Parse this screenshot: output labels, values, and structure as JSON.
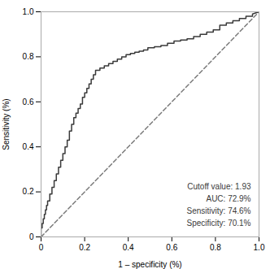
{
  "chart_data": {
    "type": "line",
    "xlabel": "1 – specificity (%)",
    "ylabel": "Sensitivity (%)",
    "xlim": [
      0,
      1.0
    ],
    "ylim": [
      0,
      1.0
    ],
    "xticks": [
      0,
      0.2,
      0.4,
      0.6,
      0.8,
      {
        "value": 1.0,
        "label": "1.0"
      }
    ],
    "yticks": [
      0,
      0.2,
      0.4,
      0.6,
      0.8,
      {
        "value": 1.0,
        "label": "1.0"
      }
    ],
    "grid": false,
    "series": [
      {
        "color": "#7a7a7a",
        "line_style": "dashed",
        "x": [
          0,
          1
        ],
        "values": [
          0,
          1
        ]
      },
      {
        "color": "#3a3a3a",
        "line_style": "solid",
        "x": [
          0.0,
          0.0,
          0.005,
          0.005,
          0.01,
          0.01,
          0.015,
          0.015,
          0.02,
          0.02,
          0.025,
          0.025,
          0.03,
          0.03,
          0.04,
          0.04,
          0.05,
          0.05,
          0.06,
          0.06,
          0.07,
          0.07,
          0.08,
          0.08,
          0.09,
          0.09,
          0.1,
          0.1,
          0.11,
          0.11,
          0.12,
          0.12,
          0.13,
          0.13,
          0.14,
          0.14,
          0.15,
          0.15,
          0.16,
          0.16,
          0.17,
          0.17,
          0.18,
          0.18,
          0.19,
          0.19,
          0.2,
          0.2,
          0.21,
          0.21,
          0.22,
          0.22,
          0.23,
          0.23,
          0.24,
          0.24,
          0.25,
          0.25,
          0.27,
          0.27,
          0.29,
          0.29,
          0.31,
          0.31,
          0.33,
          0.33,
          0.35,
          0.35,
          0.37,
          0.37,
          0.39,
          0.39,
          0.41,
          0.41,
          0.43,
          0.43,
          0.45,
          0.45,
          0.47,
          0.47,
          0.49,
          0.49,
          0.52,
          0.52,
          0.55,
          0.55,
          0.58,
          0.58,
          0.61,
          0.61,
          0.64,
          0.64,
          0.67,
          0.67,
          0.7,
          0.7,
          0.73,
          0.73,
          0.76,
          0.76,
          0.79,
          0.79,
          0.82,
          0.82,
          0.85,
          0.85,
          0.88,
          0.88,
          0.91,
          0.91,
          0.94,
          0.94,
          0.97,
          0.97,
          1.0
        ],
        "values": [
          0.0,
          0.04,
          0.04,
          0.06,
          0.06,
          0.08,
          0.08,
          0.1,
          0.1,
          0.12,
          0.12,
          0.14,
          0.14,
          0.16,
          0.16,
          0.19,
          0.19,
          0.22,
          0.22,
          0.25,
          0.25,
          0.28,
          0.28,
          0.31,
          0.31,
          0.34,
          0.34,
          0.37,
          0.37,
          0.4,
          0.4,
          0.43,
          0.43,
          0.47,
          0.47,
          0.5,
          0.5,
          0.53,
          0.53,
          0.55,
          0.55,
          0.57,
          0.57,
          0.59,
          0.59,
          0.62,
          0.62,
          0.64,
          0.64,
          0.66,
          0.66,
          0.68,
          0.68,
          0.7,
          0.7,
          0.72,
          0.72,
          0.74,
          0.74,
          0.75,
          0.75,
          0.76,
          0.76,
          0.77,
          0.77,
          0.78,
          0.78,
          0.79,
          0.79,
          0.8,
          0.8,
          0.81,
          0.81,
          0.815,
          0.815,
          0.82,
          0.82,
          0.825,
          0.825,
          0.83,
          0.83,
          0.84,
          0.84,
          0.845,
          0.845,
          0.85,
          0.85,
          0.86,
          0.86,
          0.87,
          0.87,
          0.875,
          0.875,
          0.88,
          0.88,
          0.89,
          0.89,
          0.9,
          0.9,
          0.91,
          0.91,
          0.92,
          0.92,
          0.94,
          0.94,
          0.95,
          0.95,
          0.96,
          0.96,
          0.97,
          0.97,
          0.98,
          0.98,
          0.99,
          1.0
        ]
      }
    ],
    "annotations": [
      {
        "text": "Cutoff value: 1.93\nAUC: 72.9%\nSensitivity: 74.6%\nSpecificity: 70.1%",
        "color": "#3a3a3a"
      }
    ]
  }
}
